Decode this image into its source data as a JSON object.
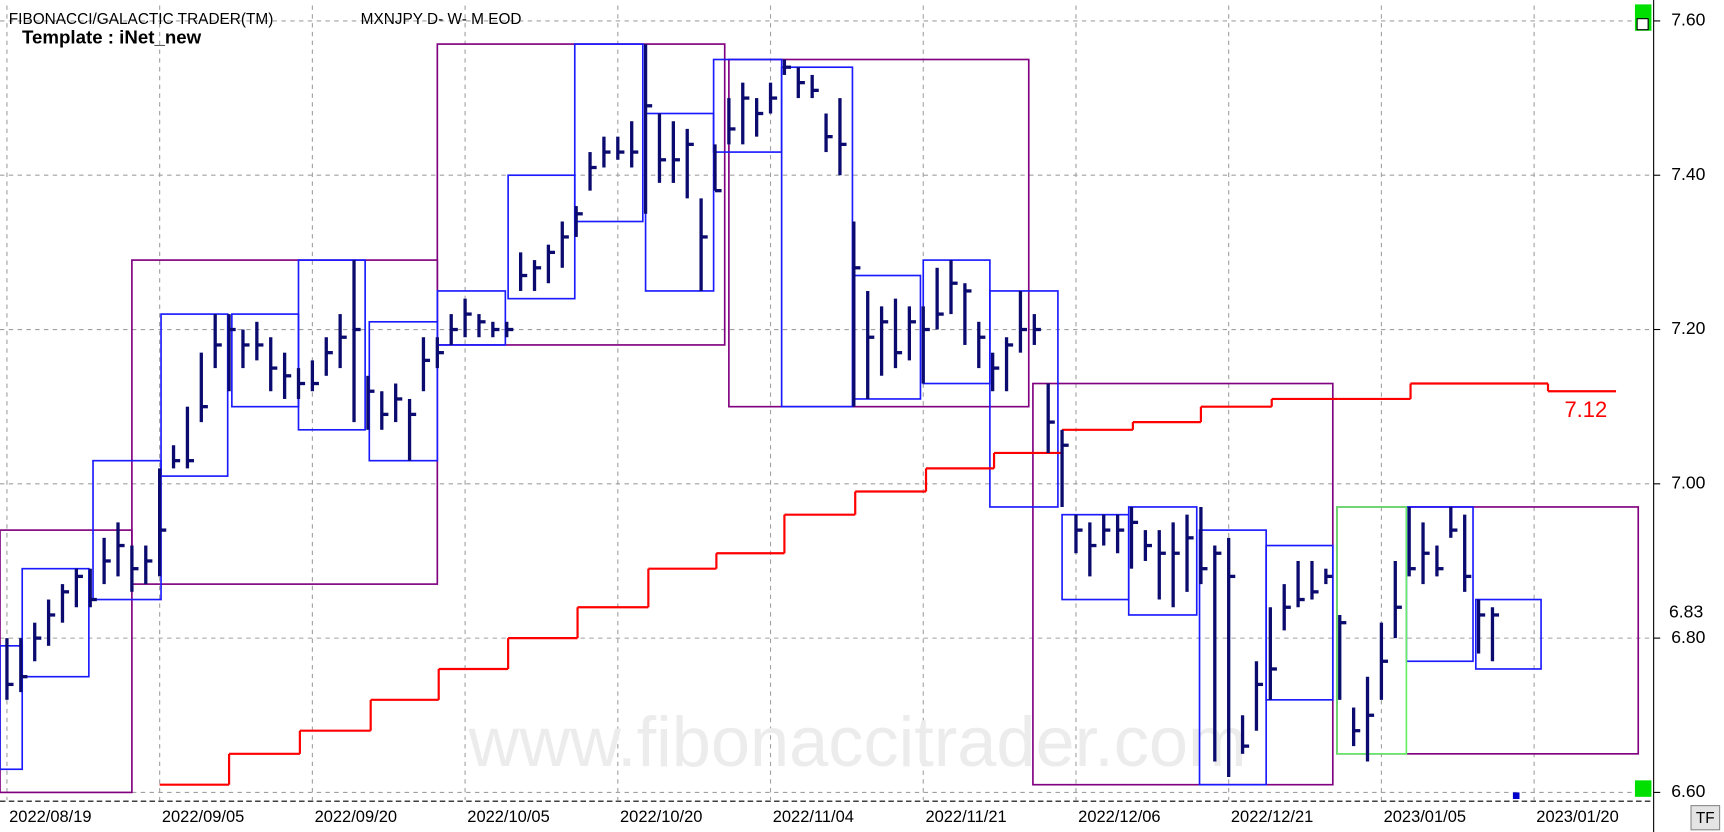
{
  "header": {
    "title": "FIBONACCI/GALACTIC TRADER(TM)",
    "symbol": "MXNJPY D- W- M EOD",
    "template": "Template : iNet_new"
  },
  "watermark": "www.fibonaccitrader.com",
  "button": "TF",
  "chart_data": {
    "type": "ohlc",
    "xlim": [
      -0.5,
      117.5
    ],
    "ylim": [
      6.59,
      7.62
    ],
    "grid": true,
    "xticks": [
      {
        "value": 0,
        "label": "2022/08/19"
      },
      {
        "value": 11,
        "label": "2022/09/05"
      },
      {
        "value": 22,
        "label": "2022/09/20"
      },
      {
        "value": 33,
        "label": "2022/10/05"
      },
      {
        "value": 44,
        "label": "2022/10/20"
      },
      {
        "value": 55,
        "label": "2022/11/04"
      },
      {
        "value": 66,
        "label": "2022/11/21"
      },
      {
        "value": 77,
        "label": "2022/12/06"
      },
      {
        "value": 88,
        "label": "2022/12/21"
      },
      {
        "value": 99,
        "label": "2023/01/05"
      },
      {
        "value": 110,
        "label": "2023/01/20"
      }
    ],
    "yticks": [
      {
        "value": 6.6,
        "label": "6.60"
      },
      {
        "value": 6.8,
        "label": "6.80"
      },
      {
        "value": 7.0,
        "label": "7.00"
      },
      {
        "value": 7.2,
        "label": "7.20"
      },
      {
        "value": 7.4,
        "label": "7.40"
      },
      {
        "value": 7.6,
        "label": "7.60"
      }
    ],
    "last_price": 6.83,
    "series": [
      {
        "color": "#0b0b6f",
        "x": [
          0,
          1,
          2,
          3,
          4,
          5,
          6,
          7,
          8,
          9,
          10,
          11,
          12,
          13,
          14,
          15,
          16,
          17,
          18,
          19,
          20,
          21,
          22,
          23,
          24,
          25,
          26,
          27,
          28,
          29,
          30,
          31,
          32,
          33,
          34,
          35,
          36,
          37,
          38,
          39,
          40,
          41,
          42,
          43,
          44,
          45,
          46,
          47,
          48,
          49,
          50,
          51,
          52,
          53,
          54,
          55,
          56,
          57,
          58,
          59,
          60,
          61,
          62,
          63,
          64,
          65,
          66,
          67,
          68,
          69,
          70,
          71,
          72,
          73,
          74,
          75,
          76,
          77,
          78,
          79,
          80,
          81,
          82,
          83,
          84,
          85,
          86,
          87,
          88,
          89,
          90,
          91,
          92,
          93,
          94,
          95,
          96,
          97,
          98,
          99,
          100,
          101,
          102,
          103,
          104,
          105,
          106,
          107
        ],
        "high": [
          6.8,
          6.8,
          6.82,
          6.85,
          6.87,
          6.89,
          6.89,
          6.93,
          6.95,
          6.92,
          6.92,
          7.02,
          7.05,
          7.1,
          7.17,
          7.22,
          7.22,
          7.2,
          7.21,
          7.19,
          7.17,
          7.15,
          7.16,
          7.19,
          7.22,
          7.29,
          7.14,
          7.12,
          7.13,
          7.11,
          7.19,
          7.19,
          7.22,
          7.24,
          7.22,
          7.21,
          7.21,
          7.3,
          7.29,
          7.31,
          7.34,
          7.36,
          7.43,
          7.45,
          7.45,
          7.47,
          7.57,
          7.48,
          7.47,
          7.46,
          7.37,
          7.44,
          7.5,
          7.52,
          7.5,
          7.52,
          7.55,
          7.54,
          7.53,
          7.48,
          7.5,
          7.34,
          7.25,
          7.23,
          7.24,
          7.23,
          7.23,
          7.28,
          7.29,
          7.26,
          7.21,
          7.17,
          7.19,
          7.25,
          7.22,
          7.13,
          7.07,
          6.96,
          6.95,
          6.96,
          6.96,
          6.97,
          6.94,
          6.94,
          6.95,
          6.96,
          6.97,
          6.92,
          6.93,
          6.7,
          6.77,
          6.84,
          6.87,
          6.9,
          6.9,
          6.89,
          6.83,
          6.71,
          6.75,
          6.82,
          6.9,
          6.97,
          6.95,
          6.92,
          6.97,
          6.96,
          6.85,
          6.84
        ],
        "low": [
          6.72,
          6.73,
          6.77,
          6.79,
          6.82,
          6.84,
          6.84,
          6.87,
          6.88,
          6.86,
          6.87,
          6.88,
          7.02,
          7.02,
          7.08,
          7.15,
          7.12,
          7.15,
          7.16,
          7.12,
          7.11,
          7.11,
          7.12,
          7.14,
          7.15,
          7.08,
          7.07,
          7.07,
          7.08,
          7.03,
          7.12,
          7.15,
          7.18,
          7.19,
          7.19,
          7.19,
          7.19,
          7.25,
          7.25,
          7.26,
          7.28,
          7.32,
          7.38,
          7.41,
          7.42,
          7.41,
          7.35,
          7.39,
          7.39,
          7.37,
          7.25,
          7.38,
          7.44,
          7.44,
          7.45,
          7.48,
          7.53,
          7.5,
          7.5,
          7.43,
          7.4,
          7.1,
          7.11,
          7.14,
          7.15,
          7.16,
          7.13,
          7.2,
          7.22,
          7.18,
          7.15,
          7.12,
          7.12,
          7.17,
          7.18,
          7.04,
          6.97,
          6.91,
          6.88,
          6.92,
          6.91,
          6.89,
          6.9,
          6.85,
          6.84,
          6.86,
          6.87,
          6.64,
          6.62,
          6.65,
          6.68,
          6.72,
          6.81,
          6.84,
          6.85,
          6.87,
          6.72,
          6.66,
          6.64,
          6.72,
          6.8,
          6.88,
          6.87,
          6.88,
          6.93,
          6.86,
          6.78,
          6.77
        ],
        "close": [
          6.74,
          6.75,
          6.8,
          6.83,
          6.86,
          6.88,
          6.85,
          6.9,
          6.92,
          6.89,
          6.9,
          6.94,
          7.03,
          7.03,
          7.1,
          7.18,
          7.2,
          7.18,
          7.18,
          7.15,
          7.14,
          7.13,
          7.13,
          7.17,
          7.19,
          7.2,
          7.12,
          7.09,
          7.11,
          7.09,
          7.16,
          7.17,
          7.2,
          7.22,
          7.21,
          7.2,
          7.2,
          7.27,
          7.28,
          7.3,
          7.32,
          7.35,
          7.41,
          7.43,
          7.43,
          7.43,
          7.49,
          7.42,
          7.42,
          7.44,
          7.32,
          7.38,
          7.46,
          7.5,
          7.48,
          7.5,
          7.54,
          7.52,
          7.51,
          7.45,
          7.44,
          7.28,
          7.19,
          7.21,
          7.17,
          7.21,
          7.2,
          7.22,
          7.26,
          7.25,
          7.19,
          7.15,
          7.18,
          7.2,
          7.2,
          7.08,
          7.05,
          6.94,
          6.92,
          6.94,
          6.94,
          6.95,
          6.92,
          6.91,
          6.91,
          6.93,
          6.89,
          6.91,
          6.88,
          6.66,
          6.74,
          6.76,
          6.84,
          6.85,
          6.86,
          6.88,
          6.82,
          6.68,
          6.7,
          6.77,
          6.84,
          6.89,
          6.91,
          6.89,
          6.94,
          6.88,
          6.83,
          6.83
        ]
      }
    ],
    "boxes": [
      {
        "color": "#800080",
        "x0": [
          -0.5,
          9.0,
          31.0,
          52.0,
          73.9,
          95.8
        ],
        "x1": [
          9.0,
          31.0,
          51.7,
          73.6,
          95.5,
          117.5
        ],
        "high": [
          6.94,
          7.29,
          7.57,
          7.55,
          7.13,
          6.97
        ],
        "low": [
          6.6,
          6.87,
          7.18,
          7.1,
          6.61,
          6.65
        ]
      },
      {
        "color": "#1a1aff",
        "x0": [
          -0.5,
          1.1,
          6.2,
          11.1,
          16.2,
          21.0,
          26.1,
          31.0,
          36.1,
          40.9,
          46.0,
          50.9,
          55.8,
          61.0,
          66.0,
          70.8,
          76.0,
          80.8,
          85.9,
          90.7,
          100.8,
          105.8
        ],
        "x1": [
          1.1,
          5.9,
          11.1,
          15.9,
          21.0,
          25.8,
          31.0,
          35.9,
          40.9,
          45.8,
          50.9,
          55.8,
          60.9,
          65.8,
          70.8,
          75.7,
          80.8,
          85.7,
          90.7,
          95.5,
          105.6,
          110.5
        ],
        "high": [
          6.79,
          6.89,
          7.03,
          7.22,
          7.22,
          7.29,
          7.21,
          7.25,
          7.4,
          7.57,
          7.48,
          7.55,
          7.54,
          7.27,
          7.29,
          7.25,
          6.96,
          6.97,
          6.94,
          6.92,
          6.97,
          6.85
        ],
        "low": [
          6.63,
          6.75,
          6.85,
          7.01,
          7.1,
          7.07,
          7.03,
          7.18,
          7.24,
          7.34,
          7.25,
          7.43,
          7.1,
          7.11,
          7.13,
          6.97,
          6.85,
          6.83,
          6.61,
          6.72,
          6.77,
          6.76
        ]
      },
      {
        "color": "#66ee66",
        "x0": [
          95.8
        ],
        "x1": [
          100.8
        ],
        "high": [
          6.97
        ],
        "low": [
          6.65
        ]
      }
    ],
    "line": {
      "color": "#ff0000",
      "x": [
        11.0,
        16.0,
        21.1,
        26.2,
        31.1,
        36.1,
        41.1,
        46.2,
        51.1,
        56.0,
        61.1,
        66.2,
        71.1,
        76.0,
        81.1,
        86.0,
        91.1,
        95.9,
        101.1,
        111.0,
        115.9
      ],
      "values": [
        6.61,
        6.65,
        6.68,
        6.72,
        6.76,
        6.8,
        6.84,
        6.89,
        6.91,
        6.96,
        6.99,
        7.02,
        7.04,
        7.07,
        7.08,
        7.1,
        7.11,
        7.11,
        7.13,
        7.12,
        7.12
      ],
      "value_labels": [
        null,
        null,
        null,
        null,
        null,
        null,
        null,
        null,
        null,
        null,
        null,
        null,
        null,
        null,
        null,
        null,
        null,
        null,
        null,
        null,
        "7.12"
      ]
    }
  }
}
